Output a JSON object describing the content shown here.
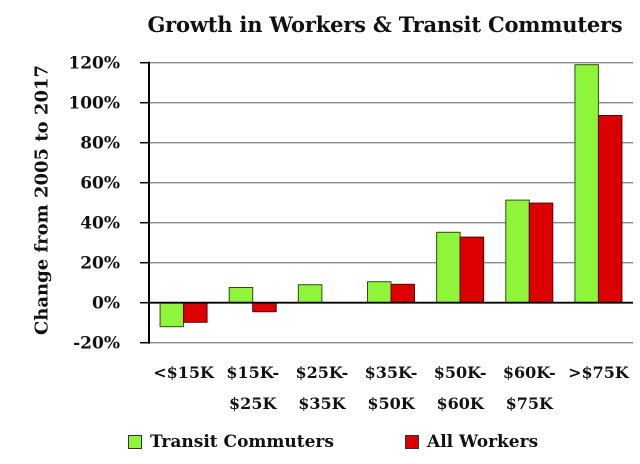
{
  "chart_data": {
    "type": "bar",
    "title": "Growth in Workers & Transit Commuters",
    "xlabel": "",
    "ylabel": "Change from 2005 to 2017",
    "ylim": [
      -20,
      120
    ],
    "yticks": [
      "120%",
      "100%",
      "80%",
      "60%",
      "40%",
      "20%",
      "0%",
      "-20%"
    ],
    "grid": true,
    "legend_position": "bottom",
    "categories": [
      [
        "<$15K"
      ],
      [
        "$15K-",
        "$25K"
      ],
      [
        "$25K-",
        "$35K"
      ],
      [
        "$35K-",
        "$50K"
      ],
      [
        "$50K-",
        "$60K"
      ],
      [
        "$60K-",
        "$75K"
      ],
      [
        ">$75K"
      ]
    ],
    "series": [
      {
        "name": "Transit Commuters",
        "color": "#8ef53a",
        "values": [
          -12,
          7.6,
          9,
          10.5,
          35.2,
          51.3,
          119
        ]
      },
      {
        "name": "All Workers",
        "color": "#dd0000",
        "values": [
          -9.8,
          -4.5,
          0,
          9.2,
          32.8,
          49.8,
          93.6
        ]
      }
    ]
  },
  "legend": {
    "items": [
      {
        "label": "Transit Commuters",
        "color": "#8ef53a"
      },
      {
        "label": "All Workers",
        "color": "#dd0000"
      }
    ]
  }
}
